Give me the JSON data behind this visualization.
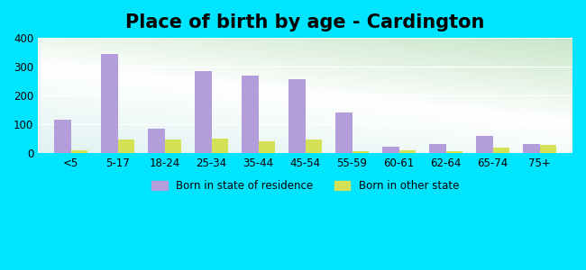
{
  "title": "Place of birth by age - Cardington",
  "categories": [
    "<5",
    "5-17",
    "18-24",
    "25-34",
    "35-44",
    "45-54",
    "55-59",
    "60-61",
    "62-64",
    "65-74",
    "75+"
  ],
  "born_in_state": [
    115,
    345,
    83,
    285,
    268,
    255,
    142,
    20,
    30,
    58,
    30
  ],
  "born_other_state": [
    8,
    48,
    46,
    50,
    40,
    47,
    7,
    8,
    6,
    18,
    27
  ],
  "bar_color_state": "#b39ddb",
  "bar_color_other": "#d4e157",
  "ylim": [
    0,
    400
  ],
  "yticks": [
    0,
    100,
    200,
    300,
    400
  ],
  "title_fontsize": 15,
  "legend_label_state": "Born in state of residence",
  "legend_label_other": "Born in other state",
  "bg_color_left": "#e8f5e9",
  "bg_color_right": "#e0f7fa",
  "outer_bg": "#00e5ff"
}
